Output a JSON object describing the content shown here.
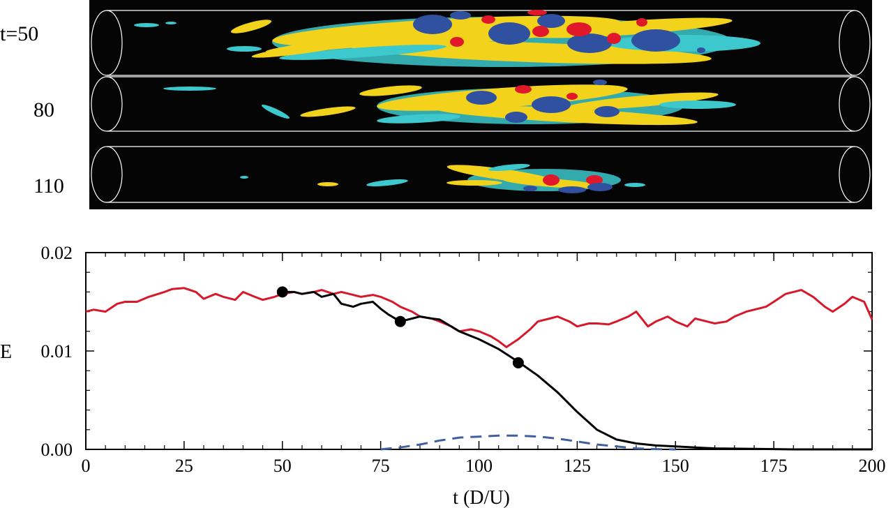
{
  "snapshots": [
    {
      "label": "t=50"
    },
    {
      "label": "80"
    },
    {
      "label": "110"
    }
  ],
  "colors": {
    "panel_bg": "#050505",
    "pipe_outline": "#ffffff",
    "vortex_cyan": "#3cc8cc",
    "vortex_yellow": "#f2d21a",
    "vortex_blue": "#3050a0",
    "vortex_red": "#e0182a",
    "red_line": "#d8182a",
    "black_line": "#000000",
    "blue_dashed": "#3f5f9f",
    "markers": "#000000"
  },
  "chart_data": {
    "type": "line",
    "xlabel": "t (D/U)",
    "ylabel": "E",
    "xlim": [
      0,
      200
    ],
    "ylim": [
      0.0,
      0.02
    ],
    "x_ticks": [
      "0",
      "25",
      "50",
      "75",
      "100",
      "125",
      "150",
      "175",
      "200"
    ],
    "y_ticks": [
      "0.00",
      "0.01",
      "0.02"
    ],
    "grid": false,
    "series": [
      {
        "color": "#d8182a",
        "style": "solid",
        "x": [
          0,
          2,
          5,
          8,
          10,
          13,
          16,
          20,
          22,
          25,
          28,
          30,
          33,
          35,
          38,
          40,
          43,
          45,
          48,
          50,
          53,
          55,
          58,
          60,
          63,
          65,
          68,
          70,
          73,
          75,
          78,
          80,
          83,
          85,
          88,
          90,
          93,
          95,
          98,
          100,
          103,
          105,
          107,
          110,
          113,
          115,
          118,
          120,
          123,
          125,
          128,
          130,
          133,
          135,
          138,
          140,
          143,
          145,
          148,
          150,
          153,
          155,
          158,
          160,
          163,
          165,
          168,
          170,
          173,
          175,
          178,
          180,
          182,
          185,
          188,
          190,
          193,
          195,
          198,
          200
        ],
        "y": [
          0.014,
          0.0142,
          0.014,
          0.0148,
          0.015,
          0.015,
          0.0155,
          0.016,
          0.0163,
          0.0164,
          0.016,
          0.0153,
          0.0158,
          0.0155,
          0.0152,
          0.016,
          0.0155,
          0.0152,
          0.0155,
          0.0158,
          0.016,
          0.0158,
          0.016,
          0.0162,
          0.0158,
          0.016,
          0.0157,
          0.0155,
          0.0157,
          0.0155,
          0.015,
          0.0145,
          0.014,
          0.0135,
          0.0133,
          0.013,
          0.0125,
          0.012,
          0.0122,
          0.012,
          0.0115,
          0.011,
          0.0104,
          0.0112,
          0.0122,
          0.013,
          0.0133,
          0.0135,
          0.013,
          0.0125,
          0.0128,
          0.0128,
          0.0127,
          0.013,
          0.0135,
          0.014,
          0.0125,
          0.013,
          0.0135,
          0.013,
          0.0125,
          0.0133,
          0.013,
          0.0128,
          0.013,
          0.0135,
          0.014,
          0.0142,
          0.0145,
          0.015,
          0.0158,
          0.016,
          0.0162,
          0.0155,
          0.0145,
          0.014,
          0.0148,
          0.0155,
          0.015,
          0.0132
        ]
      },
      {
        "color": "#000000",
        "style": "solid",
        "x": [
          50,
          53,
          55,
          58,
          60,
          63,
          65,
          68,
          70,
          73,
          75,
          77,
          80,
          83,
          85,
          88,
          90,
          95,
          100,
          105,
          110,
          115,
          120,
          125,
          130,
          135,
          140,
          145,
          150,
          155,
          160,
          170,
          180,
          190,
          200
        ],
        "y": [
          0.016,
          0.016,
          0.0158,
          0.016,
          0.0155,
          0.0158,
          0.0148,
          0.0145,
          0.0148,
          0.015,
          0.0143,
          0.0137,
          0.013,
          0.0133,
          0.0135,
          0.0133,
          0.0132,
          0.012,
          0.0112,
          0.0102,
          0.0089,
          0.0075,
          0.0058,
          0.0038,
          0.002,
          0.001,
          0.0006,
          0.0004,
          0.0003,
          0.0002,
          0.0001,
          5e-05,
          0.0,
          0.0,
          0.0
        ]
      },
      {
        "color": "#3f5f9f",
        "style": "dashed",
        "x": [
          75,
          80,
          85,
          90,
          95,
          100,
          105,
          110,
          115,
          120,
          125,
          130,
          135,
          140,
          145,
          150
        ],
        "y": [
          0.0,
          0.0002,
          0.0005,
          0.0009,
          0.0012,
          0.0013,
          0.0014,
          0.0014,
          0.0013,
          0.0011,
          0.0008,
          0.0005,
          0.0003,
          0.0001,
          3e-05,
          0.0
        ]
      }
    ],
    "markers": [
      {
        "x": 50,
        "y": 0.016
      },
      {
        "x": 80,
        "y": 0.013
      },
      {
        "x": 110,
        "y": 0.0088
      }
    ]
  }
}
